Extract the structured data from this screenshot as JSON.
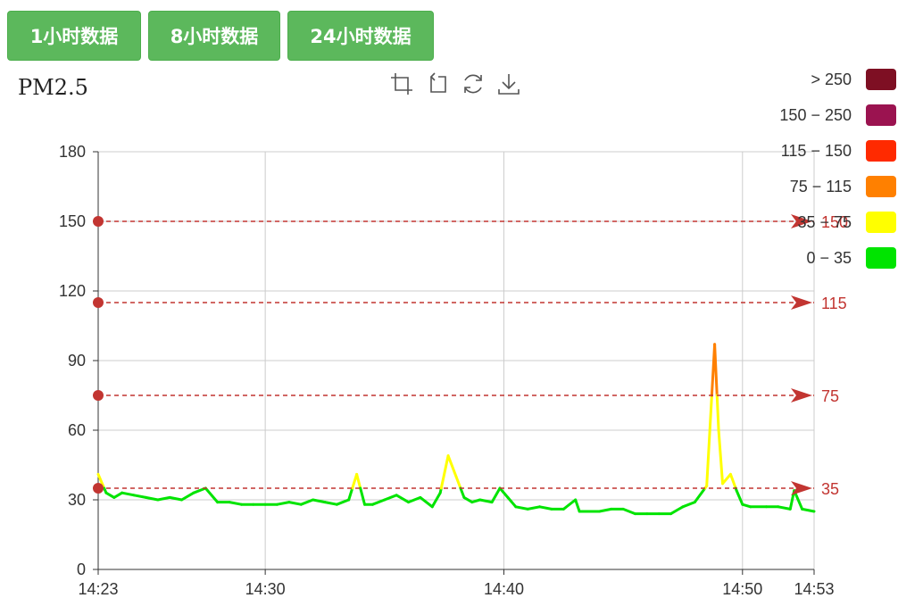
{
  "buttons": [
    {
      "label": "1小时数据"
    },
    {
      "label": "8小时数据"
    },
    {
      "label": "24小时数据"
    }
  ],
  "toolbox": [
    "zoom-icon",
    "zoom-reset-icon",
    "restore-icon",
    "download-icon"
  ],
  "legend": [
    {
      "label": "> 250",
      "color": "#7e0f23"
    },
    {
      "label": "150 − 250",
      "color": "#9b1350"
    },
    {
      "label": "115 − 150",
      "color": "#ff2a00"
    },
    {
      "label": "75 − 115",
      "color": "#ff8000"
    },
    {
      "label": "35 − 75",
      "color": "#ffff00"
    },
    {
      "label": "0 − 35",
      "color": "#00e400"
    }
  ],
  "chart_data": {
    "type": "line",
    "title": "PM2.5",
    "xlabel": "",
    "ylabel": "",
    "ylim": [
      0,
      180
    ],
    "yticks": [
      0,
      30,
      60,
      90,
      120,
      150,
      180
    ],
    "xticks": [
      "14:23",
      "14:30",
      "14:40",
      "14:50",
      "14:53"
    ],
    "xrange_minutes": [
      "14:23",
      "14:53"
    ],
    "grid": true,
    "visual_map": [
      {
        "min": 0,
        "max": 35,
        "color": "#00e400"
      },
      {
        "min": 35,
        "max": 75,
        "color": "#ffff00"
      },
      {
        "min": 75,
        "max": 115,
        "color": "#ff8000"
      },
      {
        "min": 115,
        "max": 150,
        "color": "#ff2a00"
      },
      {
        "min": 150,
        "max": 250,
        "color": "#9b1350"
      },
      {
        "min": 250,
        "max": null,
        "color": "#7e0f23"
      }
    ],
    "mark_lines": [
      {
        "value": 35,
        "label": "35"
      },
      {
        "value": 75,
        "label": "75"
      },
      {
        "value": 115,
        "label": "115"
      },
      {
        "value": 150,
        "label": "150"
      }
    ],
    "mark_line_color": "#c23531",
    "series": [
      {
        "x": [
          "14:23:00",
          "14:23:20",
          "14:23:40",
          "14:24:00",
          "14:24:30",
          "14:25:00",
          "14:25:30",
          "14:26:00",
          "14:26:30",
          "14:27:00",
          "14:27:30",
          "14:28:00",
          "14:28:30",
          "14:29:00",
          "14:29:30",
          "14:30:00",
          "14:30:30",
          "14:31:00",
          "14:31:30",
          "14:32:00",
          "14:32:30",
          "14:33:00",
          "14:33:30",
          "14:33:50",
          "14:34:10",
          "14:34:30",
          "14:35:00",
          "14:35:30",
          "14:36:00",
          "14:36:30",
          "14:37:00",
          "14:37:20",
          "14:37:40",
          "14:38:00",
          "14:38:20",
          "14:38:40",
          "14:39:00",
          "14:39:30",
          "14:39:50",
          "14:40:10",
          "14:40:30",
          "14:41:00",
          "14:41:30",
          "14:42:00",
          "14:42:30",
          "14:43:00",
          "14:43:10",
          "14:43:30",
          "14:44:00",
          "14:44:30",
          "14:45:00",
          "14:45:30",
          "14:46:00",
          "14:46:30",
          "14:47:00",
          "14:47:30",
          "14:48:00",
          "14:48:30",
          "14:48:50",
          "14:49:00",
          "14:49:10",
          "14:49:30",
          "14:49:45",
          "14:50:00",
          "14:50:20",
          "14:51:00",
          "14:51:30",
          "14:52:00",
          "14:52:10",
          "14:52:30",
          "14:53:00"
        ],
        "values": [
          41,
          33,
          31,
          33,
          32,
          31,
          30,
          31,
          30,
          33,
          35,
          29,
          29,
          28,
          28,
          28,
          28,
          29,
          28,
          30,
          29,
          28,
          30,
          41,
          28,
          28,
          30,
          32,
          29,
          31,
          27,
          33,
          49,
          40,
          31,
          29,
          30,
          29,
          35,
          31,
          27,
          26,
          27,
          26,
          26,
          30,
          25,
          25,
          25,
          26,
          26,
          24,
          24,
          24,
          24,
          27,
          29,
          36,
          97,
          60,
          37,
          41,
          34,
          28,
          27,
          27,
          27,
          26,
          34,
          26,
          25
        ]
      }
    ]
  }
}
